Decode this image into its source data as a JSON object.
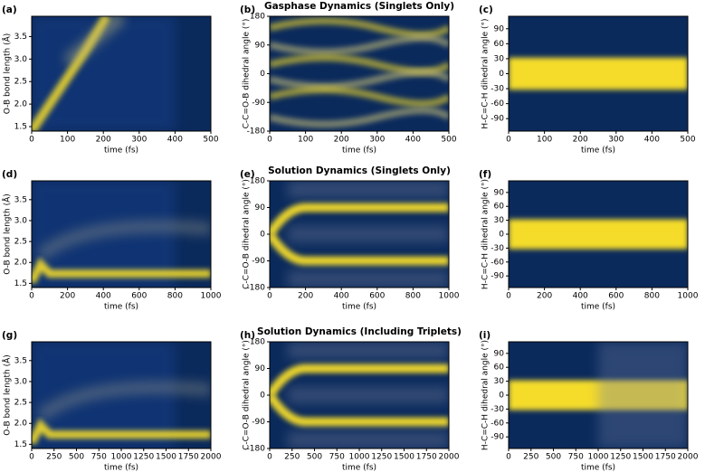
{
  "chart_data": [
    {
      "type": "heatmap",
      "panel_label": "(a)",
      "xlabel": "time (fs)",
      "ylabel": "O-B bond length (Å)",
      "xlim": [
        0,
        500
      ],
      "xticks": [
        0,
        100,
        200,
        300,
        400,
        500
      ],
      "ylim": [
        1.4,
        3.95
      ],
      "yticks": [
        1.5,
        {
          "value": 2,
          "label": "2.0"
        },
        2.5,
        {
          "value": 3,
          "label": "3.0"
        },
        3.5
      ]
    },
    {
      "type": "heatmap",
      "panel_label": "(b)",
      "title": "Gasphase Dynamics (Singlets Only)",
      "xlabel": "time (fs)",
      "ylabel": "C-C=O-B dihedral angle (°)",
      "xlim": [
        0,
        500
      ],
      "xticks": [
        0,
        100,
        200,
        300,
        400,
        500
      ],
      "ylim": [
        -180,
        180
      ],
      "yticks": [
        -180,
        -90,
        0,
        90,
        180
      ]
    },
    {
      "type": "heatmap",
      "panel_label": "(c)",
      "xlabel": "time (fs)",
      "ylabel": "H-C=C-H dihedral angle (°)",
      "xlim": [
        0,
        500
      ],
      "xticks": [
        0,
        100,
        200,
        300,
        400,
        500
      ],
      "ylim": [
        -115,
        115
      ],
      "yticks": [
        -90,
        -60,
        -30,
        0,
        30,
        60,
        90
      ]
    },
    {
      "type": "heatmap",
      "panel_label": "(d)",
      "xlabel": "time (fs)",
      "ylabel": "O-B bond length (Å)",
      "xlim": [
        0,
        1000
      ],
      "xticks": [
        0,
        200,
        400,
        600,
        800,
        1000
      ],
      "ylim": [
        1.4,
        3.95
      ],
      "yticks": [
        1.5,
        {
          "value": 2,
          "label": "2.0"
        },
        2.5,
        {
          "value": 3,
          "label": "3.0"
        },
        3.5
      ]
    },
    {
      "type": "heatmap",
      "panel_label": "(e)",
      "title": "Solution Dynamics (Singlets Only)",
      "xlabel": "time (fs)",
      "ylabel": "C-C=O-B dihedral angle (°)",
      "xlim": [
        0,
        1000
      ],
      "xticks": [
        0,
        200,
        400,
        600,
        800,
        1000
      ],
      "ylim": [
        -180,
        180
      ],
      "yticks": [
        -180,
        -90,
        0,
        90,
        180
      ]
    },
    {
      "type": "heatmap",
      "panel_label": "(f)",
      "xlabel": "time (fs)",
      "ylabel": "H-C=C-H dihedral angle (°)",
      "xlim": [
        0,
        1000
      ],
      "xticks": [
        0,
        200,
        400,
        600,
        800,
        1000
      ],
      "ylim": [
        -115,
        115
      ],
      "yticks": [
        -90,
        -60,
        -30,
        0,
        30,
        60,
        90
      ]
    },
    {
      "type": "heatmap",
      "panel_label": "(g)",
      "xlabel": "time (fs)",
      "ylabel": "O-B bond length (Å)",
      "xlim": [
        0,
        2000
      ],
      "xticks": [
        0,
        250,
        500,
        750,
        1000,
        1250,
        1500,
        1750,
        2000
      ],
      "ylim": [
        1.4,
        3.95
      ],
      "yticks": [
        1.5,
        {
          "value": 2,
          "label": "2.0"
        },
        2.5,
        {
          "value": 3,
          "label": "3.0"
        },
        3.5
      ]
    },
    {
      "type": "heatmap",
      "panel_label": "(h)",
      "title": "Solution Dynamics (Including Triplets)",
      "xlabel": "time (fs)",
      "ylabel": "C-C=O-B dihedral angle (°)",
      "xlim": [
        0,
        2000
      ],
      "xticks": [
        0,
        250,
        500,
        750,
        1000,
        1250,
        1500,
        1750,
        2000
      ],
      "ylim": [
        -180,
        180
      ],
      "yticks": [
        -180,
        -90,
        0,
        90,
        180
      ]
    },
    {
      "type": "heatmap",
      "panel_label": "(i)",
      "xlabel": "time (fs)",
      "ylabel": "H-C=C-H dihedral angle (°)",
      "xlim": [
        0,
        2000
      ],
      "xticks": [
        0,
        250,
        500,
        750,
        1000,
        1250,
        1500,
        1750,
        2000
      ],
      "ylim": [
        -115,
        115
      ],
      "yticks": [
        -90,
        -60,
        -30,
        0,
        30,
        60,
        90
      ]
    }
  ]
}
